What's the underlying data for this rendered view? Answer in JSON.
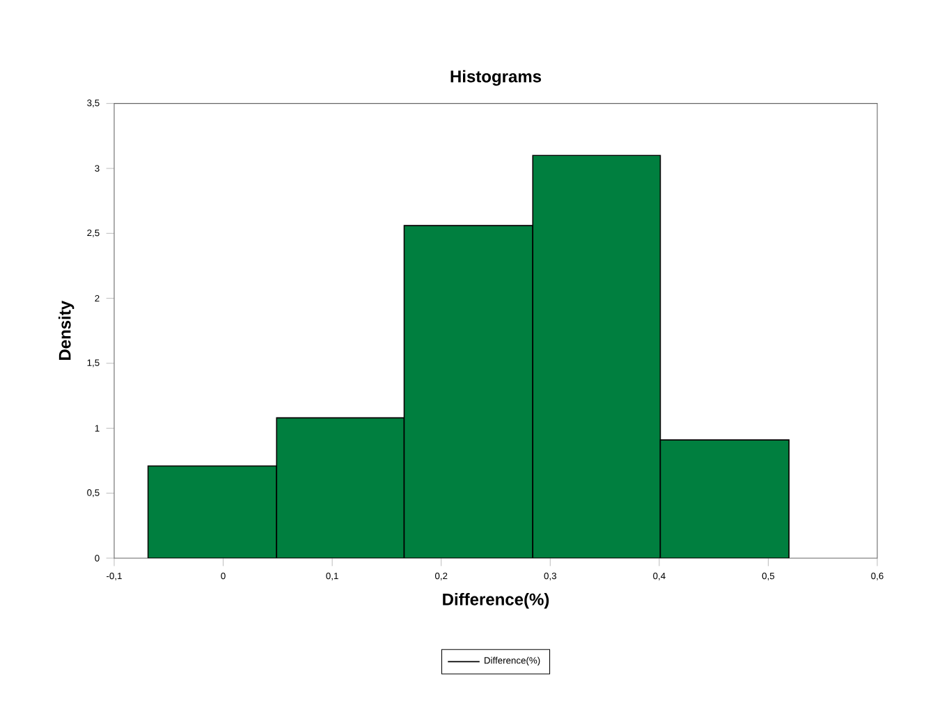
{
  "chart_data": {
    "type": "histogram",
    "title": "Histograms",
    "xlabel": "Difference(%)",
    "ylabel": "Density",
    "bins": [
      -0.069,
      0.049,
      0.166,
      0.284,
      0.401,
      0.519
    ],
    "series": [
      {
        "name": "Difference(%)",
        "color": "#007f3f",
        "values": [
          0.71,
          1.08,
          2.56,
          3.1,
          0.91
        ]
      }
    ],
    "xlim": [
      -0.1,
      0.6
    ],
    "xticks": [
      {
        "value": -0.1,
        "label": "-0,1"
      },
      0,
      {
        "value": 0.1,
        "label": "0,1"
      },
      {
        "value": 0.2,
        "label": "0,2"
      },
      {
        "value": 0.3,
        "label": "0,3"
      },
      {
        "value": 0.4,
        "label": "0,4"
      },
      {
        "value": 0.5,
        "label": "0,5"
      },
      {
        "value": 0.6,
        "label": "0,6"
      }
    ],
    "ylim": [
      0,
      3.5
    ],
    "yticks": [
      0,
      {
        "value": 0.5,
        "label": "0,5"
      },
      1,
      {
        "value": 1.5,
        "label": "1,5"
      },
      2,
      {
        "value": 2.5,
        "label": "2,5"
      },
      3,
      {
        "value": 3.5,
        "label": "3,5"
      }
    ],
    "grid": false,
    "legend": "bottom"
  }
}
